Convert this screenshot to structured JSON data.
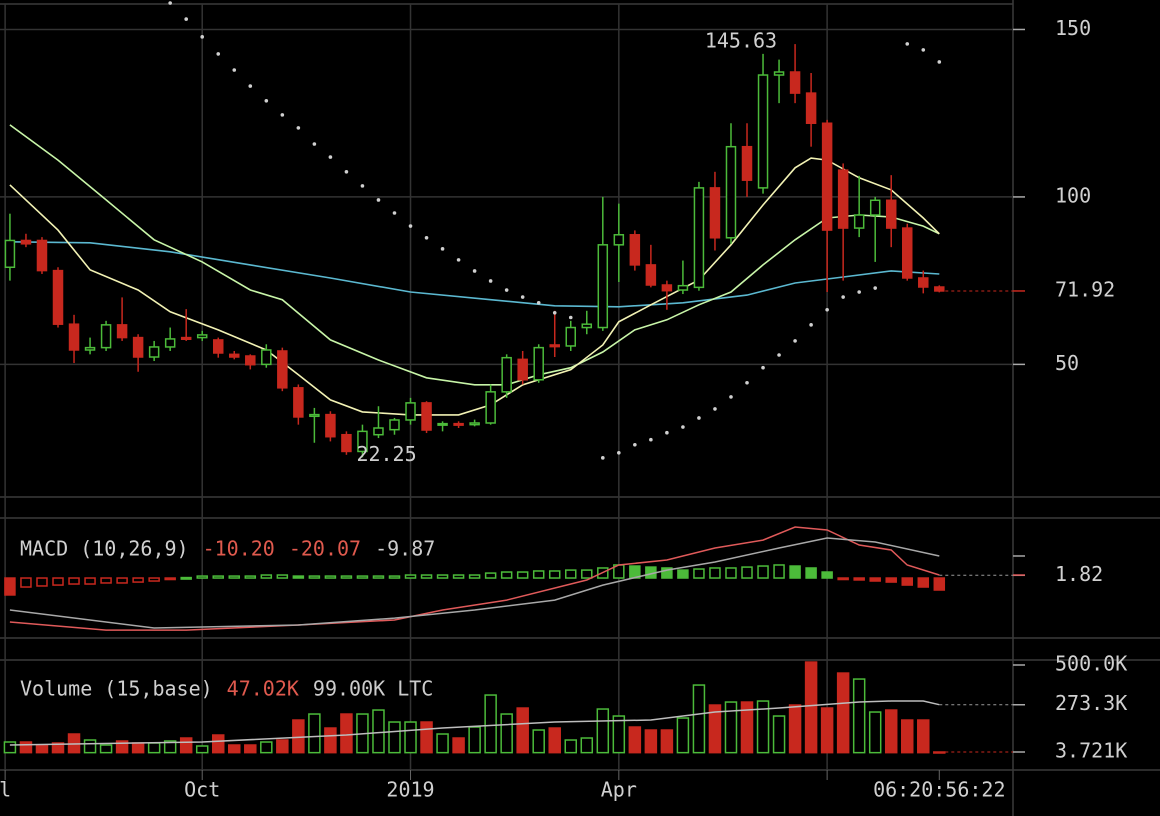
{
  "chart_data": [
    {
      "type": "candlestick",
      "x": [
        0,
        1,
        2,
        3,
        4,
        5,
        6,
        7,
        8,
        9,
        10,
        11,
        12,
        13,
        14,
        15,
        16,
        17,
        18,
        19,
        20,
        21,
        22,
        23,
        24,
        25,
        26,
        27,
        28,
        29,
        30,
        31,
        32,
        33,
        34,
        35,
        36,
        37,
        38,
        39,
        40,
        41,
        42,
        43,
        44,
        45,
        46,
        47,
        48,
        49,
        50,
        51,
        52,
        53,
        54,
        55,
        56,
        57,
        58
      ],
      "open": [
        79,
        87,
        87,
        78,
        62,
        54.3,
        55,
        61.8,
        58,
        52.2,
        55.2,
        58,
        58,
        57.3,
        53,
        52.5,
        50,
        54,
        43,
        34.5,
        35,
        29,
        24,
        29,
        30.5,
        33.4,
        38.5,
        31.9,
        32.3,
        32,
        32.5,
        41.8,
        51.5,
        45.4,
        55.8,
        55.5,
        61,
        61,
        85.7,
        88.7,
        79.7,
        73.7,
        72.2,
        73,
        102.7,
        87.8,
        115,
        102.7,
        136.4,
        137.3,
        131,
        122,
        108,
        90.7,
        94.6,
        99,
        90.7,
        75.8,
        73.1
      ],
      "high": [
        95,
        89,
        88,
        79,
        64.8,
        58,
        63,
        70,
        59,
        57,
        61,
        66.5,
        60,
        58,
        54,
        53,
        56,
        55,
        44,
        37,
        36,
        30,
        32,
        37.5,
        34,
        40,
        39,
        33,
        33,
        33.5,
        44,
        53,
        54,
        56,
        66,
        63,
        66,
        100,
        98,
        90,
        85.7,
        75,
        81,
        104.5,
        107.5,
        122,
        122,
        142.7,
        141,
        145.63,
        137,
        123,
        110,
        106.3,
        100,
        106.5,
        92,
        78,
        73.6
      ],
      "low": [
        75,
        85,
        77,
        61,
        50.4,
        53,
        54,
        57,
        47.8,
        51,
        54,
        57,
        57,
        52,
        51.5,
        48.5,
        49,
        42,
        32,
        26.6,
        27,
        23,
        22.25,
        28,
        29,
        32,
        29.5,
        30,
        31,
        31.5,
        32,
        40,
        44,
        44.5,
        52.2,
        54,
        59,
        60,
        74.6,
        78,
        73,
        66.3,
        71,
        72,
        84,
        86,
        100,
        101,
        128,
        128,
        115,
        71.6,
        75,
        88,
        80.6,
        85,
        75,
        71.2,
        71.5
      ],
      "close": [
        87,
        86,
        78,
        62,
        54.3,
        55,
        61.8,
        58,
        52.2,
        55.2,
        57.6,
        57.5,
        58.8,
        53.4,
        52.2,
        49.9,
        54.3,
        43,
        34.3,
        35,
        28.4,
        24,
        30,
        31,
        33.4,
        38.5,
        30.4,
        32.3,
        32,
        32.5,
        41.8,
        52,
        45.4,
        55,
        55.3,
        61,
        62,
        85.7,
        88.7,
        79.7,
        73.7,
        72,
        73.5,
        102.7,
        87.8,
        115,
        105,
        136.4,
        137.3,
        131,
        122,
        90.1,
        90.7,
        94.6,
        99,
        90.7,
        75.8,
        73.1,
        71.92
      ],
      "up_color": "#4cbb3a",
      "down_color": "#c8281e",
      "xlim": [
        -0.62,
        62.6
      ],
      "xticks": [
        {
          "value": -0.3,
          "label": "l"
        },
        {
          "value": 12,
          "label": "Oct"
        },
        {
          "value": 25,
          "label": "2019"
        },
        {
          "value": 38,
          "label": "Apr"
        },
        {
          "value": 51,
          "label": null
        }
      ],
      "ylim": [
        10.4,
        158.8
      ],
      "yticks": [
        50,
        100,
        150
      ],
      "grid": true,
      "overlays": [
        {
          "color": "#5bb8d0",
          "x": [
            0,
            5,
            10,
            15,
            20,
            25,
            30,
            34,
            38,
            42,
            46,
            49,
            52,
            55,
            58
          ],
          "values": [
            86.6,
            86.3,
            83.6,
            79.7,
            75.8,
            71.6,
            69.3,
            67.5,
            67.2,
            68.4,
            70.7,
            74.3,
            76.1,
            77.9,
            77.0
          ]
        },
        {
          "color": "#c8f5a8",
          "x": [
            0,
            3,
            6,
            9,
            12,
            15,
            17,
            20,
            23,
            26,
            29,
            31,
            33,
            35,
            37,
            39,
            41,
            43,
            45,
            47,
            49,
            51,
            53,
            55,
            57,
            58
          ],
          "values": [
            121.5,
            111.0,
            99.1,
            87.2,
            80.6,
            72.2,
            69.3,
            57.3,
            51.3,
            46.0,
            43.9,
            43.9,
            46.9,
            49.0,
            53.7,
            60.3,
            63.3,
            67.8,
            71.6,
            79.7,
            87.2,
            93.7,
            94.6,
            94.0,
            91.3,
            89.0
          ]
        },
        {
          "color": "#f2f2b4",
          "x": [
            0,
            3,
            5,
            8,
            10,
            13,
            16,
            18,
            20,
            22,
            25,
            28,
            30,
            32,
            35,
            37,
            38,
            40,
            43,
            45,
            47,
            49,
            50,
            51,
            53,
            55,
            57,
            58
          ],
          "values": [
            103.6,
            90.1,
            78.2,
            72.2,
            65.7,
            60.3,
            54.3,
            46.9,
            39.4,
            35.8,
            34.9,
            34.9,
            37.9,
            43.9,
            48.4,
            55.8,
            62.7,
            67.8,
            75.2,
            85.7,
            97.6,
            108.7,
            111.6,
            111.0,
            105.7,
            102.1,
            93.7,
            89.0
          ]
        }
      ],
      "sar": {
        "color": "#d0d0d0",
        "x": [
          10,
          11,
          12,
          13,
          14,
          15,
          16,
          17,
          18,
          19,
          20,
          21,
          22,
          23,
          24,
          25,
          26,
          27,
          28,
          29,
          30,
          31,
          32,
          33,
          34,
          35,
          37,
          38,
          39,
          40,
          41,
          42,
          43,
          44,
          45,
          46,
          47,
          48,
          49,
          50,
          51,
          52,
          53,
          54,
          56,
          57,
          58
        ],
        "values": [
          157.9,
          153.1,
          147.8,
          142.7,
          137.9,
          133.1,
          128.7,
          124.5,
          120.6,
          115.8,
          111.9,
          107.5,
          103.3,
          99.1,
          95.2,
          91.3,
          87.8,
          84.5,
          81.2,
          77.9,
          74.9,
          72.2,
          70.1,
          68.4,
          65.4,
          64.0,
          22.1,
          23.6,
          26.0,
          27.5,
          29.6,
          31.3,
          34.0,
          36.7,
          40.3,
          44.5,
          49.0,
          52.8,
          57.0,
          61.8,
          66.3,
          70.1,
          71.6,
          72.8,
          145.7,
          143.9,
          140.3
        ]
      },
      "countdown": "06:20:56:22"
    },
    {
      "type": "macd",
      "title": "MACD (10,26,9)",
      "readouts": {
        "values": [
          -10.2,
          -20.07,
          -9.87
        ],
        "value_labels": [
          "-10.20",
          "-20.07",
          "-9.87"
        ],
        "colors": [
          "#e05a4e",
          "#e05a4e",
          "#cccccc"
        ]
      },
      "histogram": {
        "up_color": "#4cbb3a",
        "down_color": "#c8281e",
        "values": [
          -11.3,
          -6,
          -5.3,
          -4.7,
          -4,
          -4,
          -3.3,
          -3.3,
          -2.7,
          -2,
          -0.7,
          0.3,
          1.3,
          1.3,
          1.3,
          1.3,
          2,
          2,
          1.3,
          1.3,
          1.3,
          1.3,
          1.3,
          1.3,
          1.3,
          2,
          2,
          2,
          2,
          2,
          3.3,
          4,
          4,
          4.7,
          4.7,
          5.3,
          5.3,
          6.7,
          8.7,
          8,
          7.3,
          6.7,
          5.3,
          6,
          6.7,
          6.7,
          7.3,
          8,
          8.7,
          8,
          6.7,
          4,
          -0.7,
          -1.3,
          -2,
          -2.7,
          -4.7,
          -6,
          -8
        ]
      },
      "series": [
        {
          "color": "#e05a5a",
          "x": [
            0,
            6,
            11,
            18,
            24,
            27,
            31,
            36,
            38,
            41,
            44,
            47,
            49,
            51,
            53,
            55,
            56,
            58
          ],
          "values": [
            -29.3,
            -34.7,
            -34.7,
            -31.3,
            -28,
            -21.3,
            -14.7,
            -1.3,
            8.7,
            12,
            20,
            25.3,
            34,
            32,
            22,
            18.7,
            8.7,
            2
          ]
        },
        {
          "color": "#a8a8a8",
          "x": [
            0,
            9,
            18,
            24,
            29,
            34,
            37,
            41,
            44,
            48,
            51,
            54,
            58
          ],
          "values": [
            -21.3,
            -33.3,
            -31.3,
            -26.7,
            -21.3,
            -14.7,
            -4.7,
            5.3,
            10.7,
            20,
            26.7,
            24,
            14.7
          ]
        }
      ],
      "ylim": [
        -40,
        38.7
      ],
      "yticks": [
        1.82
      ]
    },
    {
      "type": "volume",
      "title": "Volume (15,base)",
      "readouts": {
        "values": [
          47020,
          99000
        ],
        "value_labels": [
          "47.02K",
          "99.00K LTC"
        ],
        "colors": [
          "#e05a4e",
          "#cccccc"
        ]
      },
      "values": [
        60700,
        60700,
        43600,
        55000,
        106300,
        72100,
        43600,
        66400,
        55000,
        55000,
        66400,
        83500,
        37900,
        100600,
        43600,
        43600,
        60700,
        72100,
        186100,
        220300,
        140500,
        220300,
        220300,
        243100,
        174700,
        174700,
        174700,
        106300,
        83500,
        146200,
        328600,
        220300,
        254500,
        129100,
        140500,
        72100,
        83500,
        248800,
        208900,
        146200,
        129100,
        129100,
        197500,
        385600,
        271600,
        288700,
        288700,
        294400,
        208900,
        271600,
        516700,
        254500,
        454000,
        419800,
        231700,
        243100,
        186100,
        186100,
        3721
      ],
      "ma": {
        "color": "#bdbdbd",
        "x": [
          0,
          12,
          21,
          27,
          34,
          40,
          44,
          48,
          53,
          55,
          57,
          58
        ],
        "values": [
          43600,
          60700,
          100600,
          140500,
          174700,
          186100,
          231700,
          254500,
          288700,
          294400,
          294400,
          273300
        ]
      },
      "ylim": [
        -2000,
        528500
      ],
      "yticks": [
        {
          "value": 500000,
          "label": "500.0K"
        },
        {
          "value": 273300,
          "label": "273.3K"
        },
        {
          "value": 3721,
          "label": "3.721K"
        }
      ]
    }
  ]
}
